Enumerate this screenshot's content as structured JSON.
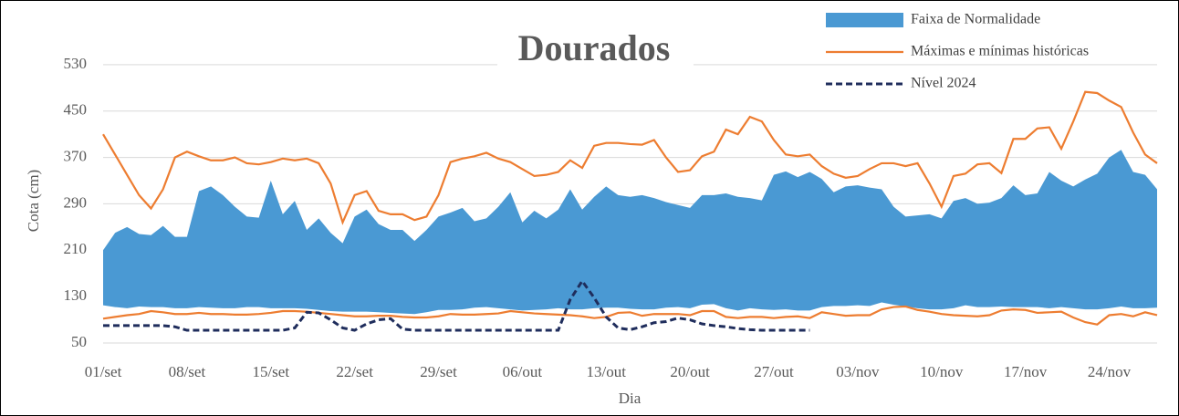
{
  "chart_data": {
    "type": "line",
    "title": "Dourados",
    "y_label": "Cota (cm)",
    "x_label": "Dia",
    "categories": [
      "01/set",
      null,
      null,
      null,
      null,
      null,
      null,
      "08/set",
      null,
      null,
      null,
      null,
      null,
      null,
      "15/set",
      null,
      null,
      null,
      null,
      null,
      null,
      "22/set",
      null,
      null,
      null,
      null,
      null,
      null,
      "29/set",
      null,
      null,
      null,
      null,
      null,
      null,
      "06/out",
      null,
      null,
      null,
      null,
      null,
      null,
      "13/out",
      null,
      null,
      null,
      null,
      null,
      null,
      "20/out",
      null,
      null,
      null,
      null,
      null,
      null,
      "27/out",
      null,
      null,
      null,
      null,
      null,
      null,
      "03/nov",
      null,
      null,
      null,
      null,
      null,
      null,
      "10/nov",
      null,
      null,
      null,
      null,
      null,
      null,
      "17/nov",
      null,
      null,
      null,
      null,
      null,
      null,
      "24/nov",
      null,
      null,
      null,
      null
    ],
    "ylim": [
      50,
      610
    ],
    "yticks": [
      50,
      130,
      210,
      290,
      370,
      450,
      530
    ],
    "grid": true,
    "legend": "top-right",
    "series": [
      {
        "name": "Faixa de Normalidade",
        "kind": "band",
        "color": "#4a99d3",
        "upper": [
          210,
          240,
          250,
          238,
          236,
          252,
          233,
          233,
          312,
          320,
          305,
          285,
          268,
          266,
          330,
          272,
          295,
          245,
          265,
          240,
          222,
          268,
          280,
          255,
          245,
          245,
          226,
          245,
          268,
          275,
          283,
          260,
          265,
          285,
          310,
          258,
          278,
          265,
          280,
          315,
          280,
          302,
          320,
          305,
          302,
          305,
          300,
          293,
          288,
          283,
          305,
          305,
          308,
          302,
          300,
          296,
          340,
          346,
          336,
          345,
          333,
          310,
          320,
          322,
          318,
          315,
          285,
          268,
          270,
          272,
          265,
          295,
          300,
          290,
          292,
          300,
          322,
          305,
          308,
          345,
          330,
          320,
          332,
          342,
          370,
          383,
          345,
          340,
          315
        ],
        "lower": [
          115,
          112,
          110,
          113,
          112,
          112,
          110,
          110,
          112,
          111,
          110,
          110,
          112,
          112,
          110,
          110,
          110,
          109,
          107,
          105,
          104,
          104,
          104,
          103,
          102,
          101,
          100,
          103,
          107,
          107,
          108,
          111,
          112,
          110,
          108,
          106,
          107,
          108,
          110,
          108,
          108,
          110,
          111,
          111,
          109,
          108,
          108,
          111,
          112,
          110,
          116,
          117,
          110,
          106,
          110,
          108,
          107,
          108,
          106,
          106,
          112,
          114,
          114,
          115,
          114,
          120,
          116,
          113,
          110,
          108,
          108,
          110,
          115,
          112,
          112,
          113,
          112,
          112,
          112,
          110,
          112,
          110,
          108,
          108,
          110,
          113,
          110,
          110,
          111
        ]
      },
      {
        "name": "Máximas e mínimas históricas",
        "kind": "pair",
        "color": "#ed7d31",
        "upper": [
          410,
          375,
          340,
          305,
          282,
          315,
          370,
          380,
          372,
          365,
          365,
          370,
          360,
          358,
          362,
          368,
          365,
          368,
          360,
          325,
          258,
          305,
          312,
          278,
          272,
          272,
          262,
          268,
          305,
          362,
          368,
          372,
          378,
          368,
          362,
          350,
          338,
          340,
          345,
          365,
          352,
          390,
          395,
          395,
          393,
          392,
          400,
          370,
          345,
          348,
          372,
          380,
          418,
          410,
          440,
          432,
          400,
          375,
          372,
          375,
          355,
          342,
          335,
          338,
          350,
          360,
          360,
          355,
          360,
          325,
          285,
          338,
          342,
          358,
          360,
          343,
          402,
          402,
          420,
          422,
          385,
          432,
          483,
          481,
          468,
          457,
          413,
          375,
          360
        ],
        "lower": [
          92,
          95,
          98,
          100,
          105,
          103,
          100,
          100,
          102,
          100,
          100,
          99,
          99,
          100,
          102,
          105,
          105,
          104,
          102,
          100,
          98,
          96,
          96,
          97,
          97,
          95,
          94,
          94,
          96,
          100,
          99,
          99,
          100,
          101,
          105,
          103,
          101,
          100,
          99,
          98,
          96,
          93,
          95,
          102,
          103,
          97,
          100,
          100,
          100,
          98,
          105,
          105,
          95,
          93,
          95,
          95,
          93,
          95,
          96,
          93,
          103,
          100,
          97,
          98,
          98,
          108,
          112,
          113,
          107,
          104,
          100,
          98,
          97,
          96,
          98,
          106,
          108,
          107,
          102,
          103,
          104,
          94,
          86,
          82,
          98,
          100,
          96,
          103,
          98
        ]
      },
      {
        "name": "Nível 2024",
        "kind": "line",
        "color": "#1f2d5c",
        "dashed": true,
        "values": [
          80,
          80,
          80,
          80,
          80,
          80,
          78,
          72,
          72,
          72,
          72,
          72,
          72,
          72,
          72,
          72,
          76,
          103,
          102,
          90,
          76,
          72,
          83,
          90,
          92,
          74,
          72,
          72,
          72,
          72,
          72,
          72,
          72,
          72,
          72,
          72,
          72,
          72,
          72,
          125,
          157,
          128,
          95,
          76,
          73,
          78,
          85,
          87,
          93,
          90,
          83,
          80,
          78,
          75,
          73,
          72,
          72,
          72,
          72,
          72,
          null,
          null,
          null,
          null,
          null,
          null,
          null,
          null,
          null,
          null,
          null,
          null,
          null,
          null,
          null,
          null,
          null,
          null,
          null,
          null,
          null,
          null,
          null,
          null,
          null,
          null,
          null,
          null,
          null
        ]
      }
    ]
  }
}
